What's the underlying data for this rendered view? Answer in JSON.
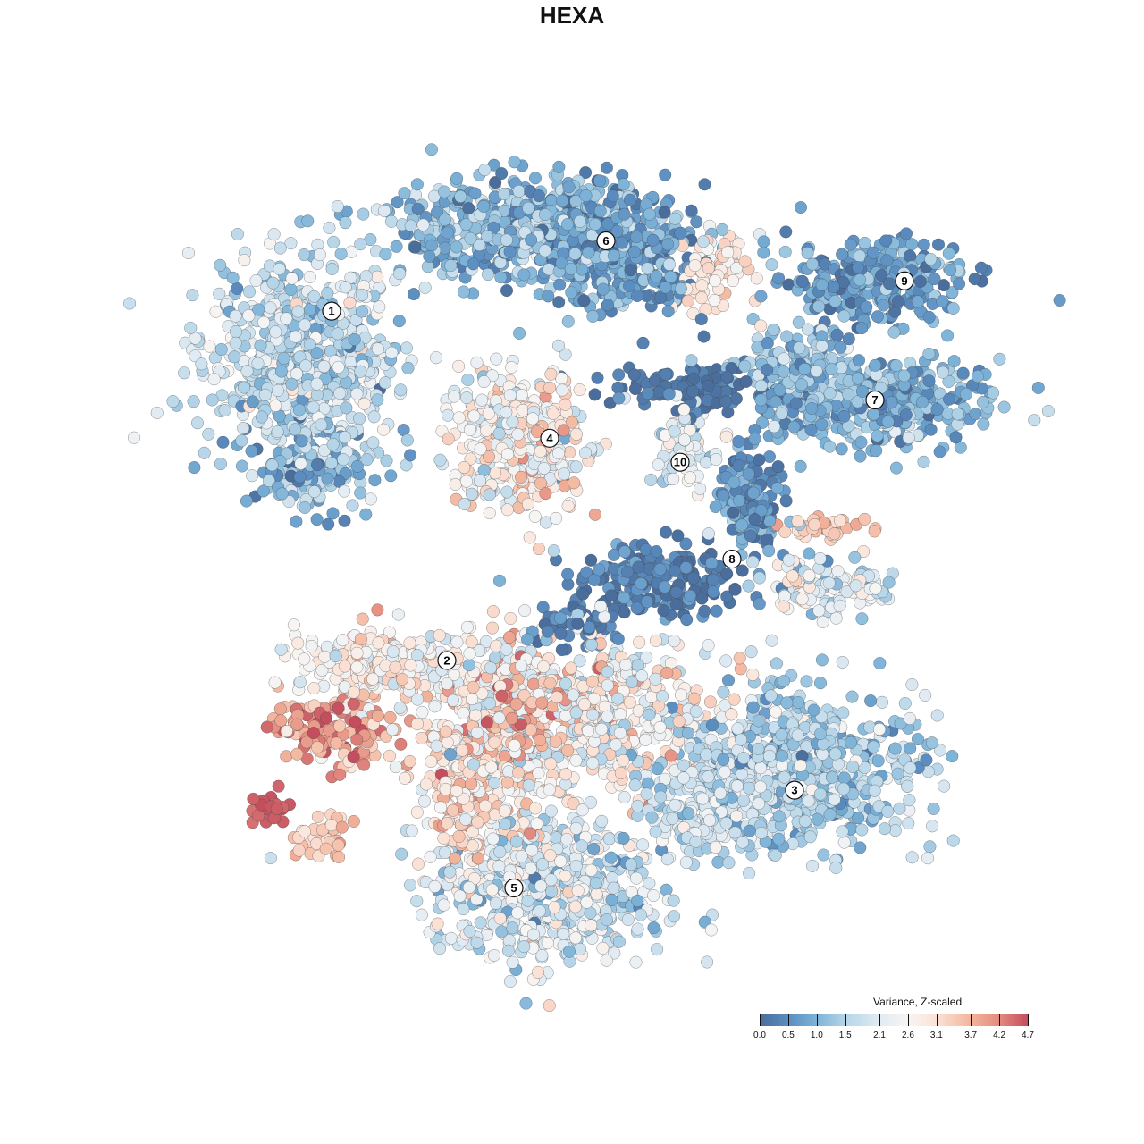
{
  "chart_data": {
    "type": "scatter",
    "title": "HEXA",
    "xlabel": "",
    "ylabel": "",
    "axes_visible": false,
    "grid": false,
    "xlim": [
      -44,
      49
    ],
    "ylim": [
      -45,
      46
    ],
    "color_scale": {
      "title": "Variance, Z-scaled",
      "range": [
        0.0,
        4.7
      ],
      "ticks": [
        0.0,
        0.5,
        1.0,
        1.5,
        2.1,
        2.6,
        3.1,
        3.7,
        4.2,
        4.7
      ],
      "tick_labels": [
        "0.0",
        "0.5",
        "1.0",
        "1.5",
        "2.1",
        "2.6",
        "3.1",
        "3.7",
        "4.2",
        "4.7"
      ],
      "stops": [
        {
          "v": 0.0,
          "color": "#4a6d9b"
        },
        {
          "v": 0.5,
          "color": "#5b8dc0"
        },
        {
          "v": 1.0,
          "color": "#7db3d8"
        },
        {
          "v": 1.5,
          "color": "#b5d5e8"
        },
        {
          "v": 2.1,
          "color": "#e1ebf3"
        },
        {
          "v": 2.6,
          "color": "#f6f5f4"
        },
        {
          "v": 3.1,
          "color": "#fbe2d6"
        },
        {
          "v": 3.7,
          "color": "#f3b59c"
        },
        {
          "v": 4.2,
          "color": "#e38a80"
        },
        {
          "v": 4.7,
          "color": "#c44e5d"
        }
      ],
      "legend_position": "bottom-right"
    },
    "point_groups": [
      {
        "cluster": "1",
        "center": [
          -30,
          24
        ],
        "spread": [
          7,
          7
        ],
        "n": 700,
        "mean": 1.7,
        "sd": 0.5
      },
      {
        "cluster": "1",
        "center": [
          -29,
          12
        ],
        "spread": [
          4,
          3
        ],
        "n": 150,
        "mean": 1.0,
        "sd": 0.5
      },
      {
        "cluster": "6",
        "center": [
          -5,
          39
        ],
        "spread": [
          10,
          3.5
        ],
        "n": 600,
        "mean": 1.1,
        "sd": 0.5
      },
      {
        "cluster": "6",
        "center": [
          5,
          36
        ],
        "spread": [
          6,
          4
        ],
        "n": 350,
        "mean": 0.7,
        "sd": 0.4
      },
      {
        "cluster": "6",
        "center": [
          16,
          34
        ],
        "spread": [
          2.5,
          2.5
        ],
        "n": 80,
        "mean": 2.9,
        "sd": 0.3
      },
      {
        "cluster": "9",
        "center": [
          34,
          33
        ],
        "spread": [
          6,
          3
        ],
        "n": 300,
        "mean": 0.7,
        "sd": 0.4
      },
      {
        "cluster": "7",
        "center": [
          35,
          19
        ],
        "spread": [
          8,
          3
        ],
        "n": 350,
        "mean": 1.0,
        "sd": 0.4
      },
      {
        "cluster": "7",
        "center": [
          26,
          23
        ],
        "spread": [
          4,
          3
        ],
        "n": 150,
        "mean": 1.2,
        "sd": 0.4
      },
      {
        "cluster": "7",
        "center": [
          13,
          21
        ],
        "spread": [
          6,
          2
        ],
        "n": 120,
        "mean": 0.15,
        "sd": 0.2
      },
      {
        "cluster": "4",
        "center": [
          -6,
          15
        ],
        "spread": [
          4.5,
          5
        ],
        "n": 400,
        "mean": 2.6,
        "sd": 0.6
      },
      {
        "cluster": "10",
        "center": [
          12.5,
          14
        ],
        "spread": [
          2,
          3
        ],
        "n": 70,
        "mean": 2.2,
        "sd": 0.4
      },
      {
        "cluster": "8",
        "center": [
          20,
          8
        ],
        "spread": [
          2.5,
          4
        ],
        "n": 150,
        "mean": 0.6,
        "sd": 0.4
      },
      {
        "cluster": "8",
        "center": [
          10,
          -0.5
        ],
        "spread": [
          6,
          2.5
        ],
        "n": 200,
        "mean": 0.25,
        "sd": 0.3
      },
      {
        "cluster": "8",
        "center": [
          28.5,
          5
        ],
        "spread": [
          3,
          0.8
        ],
        "n": 40,
        "mean": 3.5,
        "sd": 0.3
      },
      {
        "cluster": "8",
        "center": [
          29,
          -1.5
        ],
        "spread": [
          4,
          2
        ],
        "n": 120,
        "mean": 2.2,
        "sd": 0.6
      },
      {
        "cluster": "8",
        "center": [
          0,
          -6
        ],
        "spread": [
          3,
          1.5
        ],
        "n": 50,
        "mean": 0.3,
        "sd": 0.3
      },
      {
        "cluster": "2",
        "center": [
          -21,
          -10
        ],
        "spread": [
          6,
          2.5
        ],
        "n": 250,
        "mean": 2.7,
        "sd": 0.5
      },
      {
        "cluster": "2",
        "center": [
          -26.5,
          -17.5
        ],
        "spread": [
          4,
          2.5
        ],
        "n": 150,
        "mean": 3.9,
        "sd": 0.5
      },
      {
        "cluster": "2",
        "center": [
          -34,
          -26.5
        ],
        "spread": [
          1.2,
          1
        ],
        "n": 30,
        "mean": 4.6,
        "sd": 0.1
      },
      {
        "cluster": "2",
        "center": [
          -27.5,
          -29.5
        ],
        "spread": [
          2,
          1.5
        ],
        "n": 40,
        "mean": 3.4,
        "sd": 0.3
      },
      {
        "cluster": "5",
        "center": [
          0,
          -16
        ],
        "spread": [
          10,
          6
        ],
        "n": 700,
        "mean": 2.6,
        "sd": 0.7
      },
      {
        "cluster": "5",
        "center": [
          -6,
          -15
        ],
        "spread": [
          2.5,
          4
        ],
        "n": 120,
        "mean": 3.9,
        "sd": 0.4
      },
      {
        "cluster": "5",
        "center": [
          -3,
          -35
        ],
        "spread": [
          8,
          5
        ],
        "n": 600,
        "mean": 2.0,
        "sd": 0.6
      },
      {
        "cluster": "5",
        "center": [
          -11,
          -24
        ],
        "spread": [
          4,
          5
        ],
        "n": 250,
        "mean": 3.1,
        "sd": 0.5
      },
      {
        "cluster": "3",
        "center": [
          25,
          -22
        ],
        "spread": [
          8,
          5.5
        ],
        "n": 700,
        "mean": 1.4,
        "sd": 0.5
      },
      {
        "cluster": "3",
        "center": [
          15,
          -26
        ],
        "spread": [
          4,
          4
        ],
        "n": 200,
        "mean": 1.9,
        "sd": 0.4
      }
    ],
    "cluster_labels": [
      {
        "label": "1",
        "x": -26.9,
        "y": 29.6
      },
      {
        "label": "2",
        "x": -14.0,
        "y": -9.7
      },
      {
        "label": "3",
        "x": 24.9,
        "y": -24.3
      },
      {
        "label": "4",
        "x": -2.5,
        "y": 15.3
      },
      {
        "label": "5",
        "x": -6.5,
        "y": -35.3
      },
      {
        "label": "6",
        "x": 3.8,
        "y": 37.5
      },
      {
        "label": "7",
        "x": 33.9,
        "y": 19.6
      },
      {
        "label": "8",
        "x": 17.9,
        "y": 1.7
      },
      {
        "label": "9",
        "x": 37.2,
        "y": 33.0
      },
      {
        "label": "10",
        "x": 12.1,
        "y": 12.6
      }
    ]
  }
}
